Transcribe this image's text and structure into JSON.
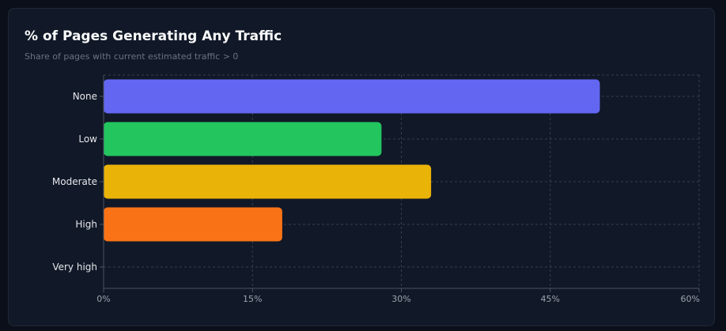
{
  "card": {
    "title": "% of Pages Generating Any Traffic",
    "subtitle": "Share of pages with current estimated traffic > 0"
  },
  "chart_data": {
    "type": "bar",
    "orientation": "horizontal",
    "title": "% of Pages Generating Any Traffic",
    "subtitle": "Share of pages with current estimated traffic > 0",
    "categories": [
      "None",
      "Low",
      "Moderate",
      "High",
      "Very high"
    ],
    "values": [
      50,
      28,
      33,
      18,
      0
    ],
    "colors": [
      "#6366f1",
      "#22c55e",
      "#eab308",
      "#f97316",
      "#ef4444"
    ],
    "xlim": [
      0,
      60
    ],
    "xticks": [
      0,
      15,
      30,
      45,
      60
    ],
    "tick_suffix": "%",
    "grid": true,
    "xlabel": "",
    "ylabel": ""
  },
  "colors": {
    "background": "#0b0f19",
    "card": "#111827",
    "grid": "#374151",
    "axis": "#4b5563",
    "category_label": "#e5e7eb",
    "tick_label": "#9ca3af"
  }
}
